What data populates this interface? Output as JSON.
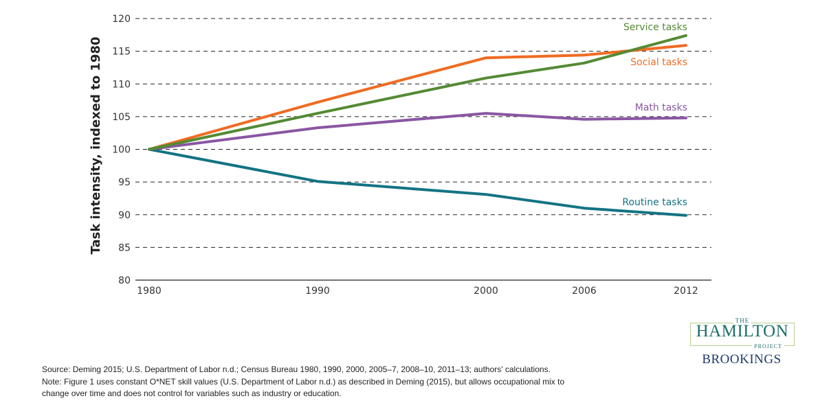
{
  "chart_data": {
    "type": "line",
    "title": "",
    "xlabel": "",
    "ylabel": "Task intensity, indexed to 1980",
    "x": [
      1980,
      1990,
      2000,
      2006,
      2012
    ],
    "x_tick_labels": [
      "1980",
      "1990",
      "2000",
      "2006",
      "2012"
    ],
    "y_ticks": [
      80,
      85,
      90,
      95,
      100,
      105,
      110,
      115,
      120
    ],
    "y_tick_labels": [
      "80",
      "85",
      "90",
      "95",
      "100",
      "105",
      "110",
      "115",
      "120"
    ],
    "ylim": [
      80,
      120
    ],
    "grid": "horizontal dashed",
    "legend": "inline labels at right end of lines",
    "series": [
      {
        "name": "Service tasks",
        "color": "#548a34",
        "values": [
          100,
          105.5,
          110.9,
          113.2,
          117.4
        ]
      },
      {
        "name": "Social tasks",
        "color": "#ef6b22",
        "values": [
          100,
          107.2,
          114.0,
          114.4,
          115.9
        ]
      },
      {
        "name": "Math tasks",
        "color": "#8a56a3",
        "values": [
          100,
          103.3,
          105.5,
          104.6,
          104.8
        ]
      },
      {
        "name": "Routine tasks",
        "color": "#137383",
        "values": [
          100,
          95.1,
          93.1,
          91.0,
          89.9
        ]
      }
    ]
  },
  "notes": {
    "source": "Source: Deming 2015; U.S. Department of Labor n.d.; Census Bureau 1980, 1990, 2000, 2005–7, 2008–10, 2011–13; authors' calculations.",
    "note_line1": "Note: Figure 1 uses constant O*NET skill values (U.S. Department of Labor n.d.) as described in Deming (2015), but allows occupational mix to",
    "note_line2": "change over time and does not control for variables such as industry or education."
  },
  "logo": {
    "the": "THE",
    "hamilton": "HAMILTON",
    "project": "PROJECT",
    "brookings": "BROOKINGS"
  }
}
